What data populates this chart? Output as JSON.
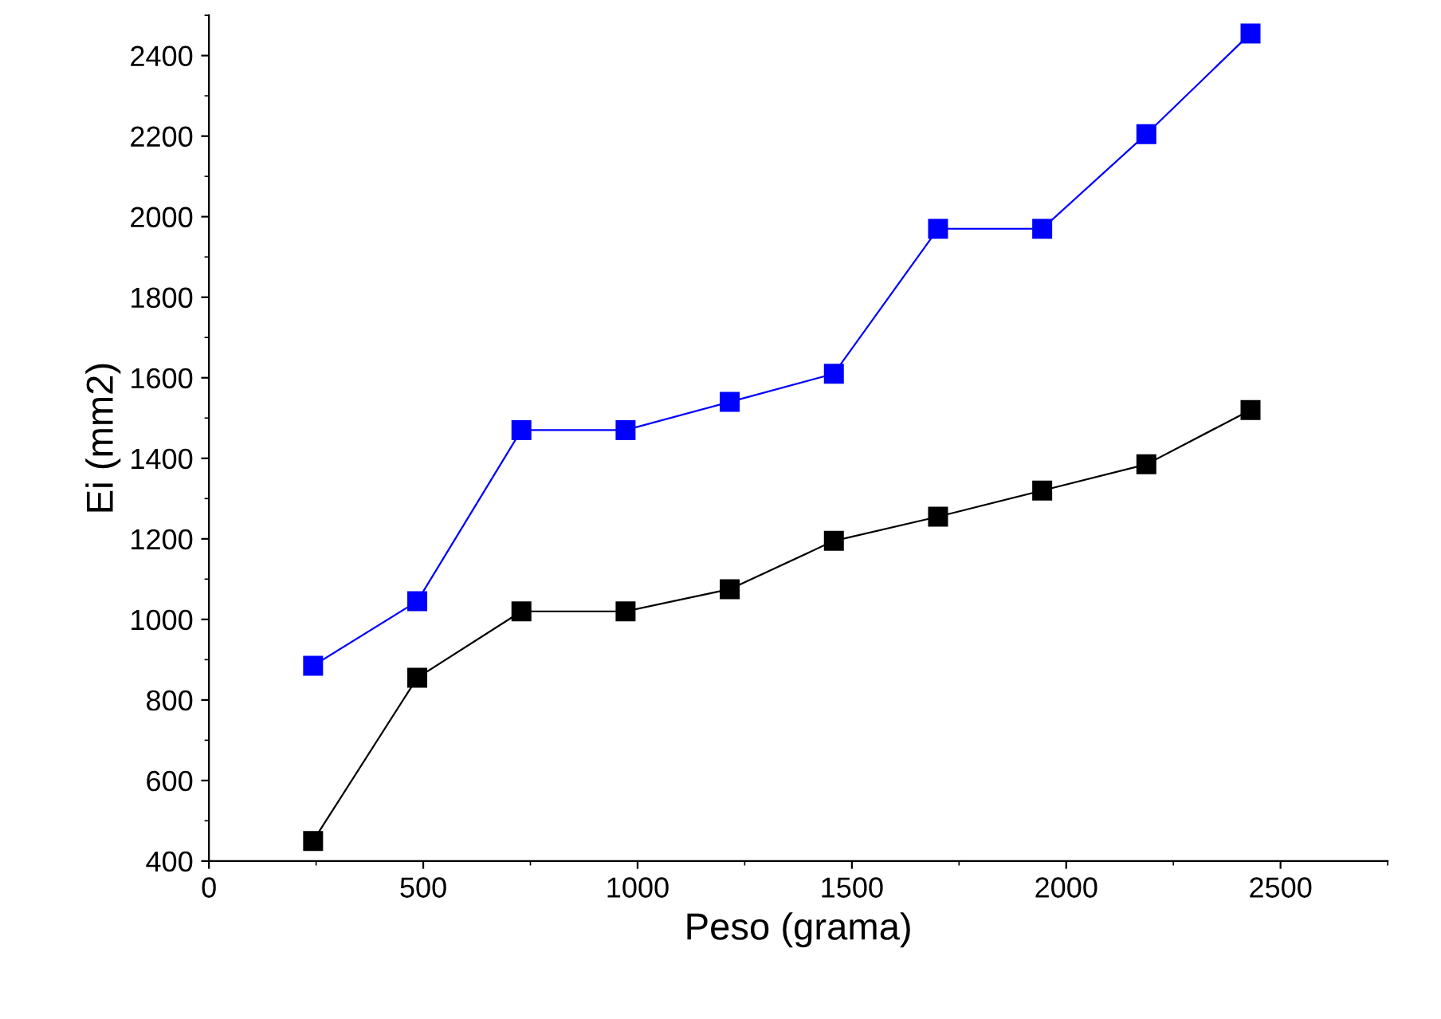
{
  "chart_data": {
    "type": "line",
    "xlabel": "Peso (grama)",
    "ylabel": "Ei (mm2)",
    "x": [
      243,
      486,
      729,
      972,
      1215,
      1458,
      1701,
      1944,
      2187,
      2430
    ],
    "series": [
      {
        "color": "#0000ff",
        "values": [
          885,
          1045,
          1470,
          1470,
          1540,
          1610,
          1970,
          1970,
          2205,
          2455
        ]
      },
      {
        "color": "#000000",
        "values": [
          450,
          855,
          1020,
          1020,
          1075,
          1195,
          1255,
          1320,
          1385,
          1520
        ]
      }
    ],
    "xlim": [
      0,
      2750
    ],
    "xticks": [
      0,
      500,
      1000,
      1500,
      2000,
      2500
    ],
    "ylim": [
      400,
      2500
    ],
    "yticks": [
      400,
      600,
      800,
      1000,
      1200,
      1400,
      1600,
      1800,
      2000,
      2200,
      2400
    ],
    "marker": "square",
    "line_style": "solid",
    "grid": false,
    "legend": false
  }
}
